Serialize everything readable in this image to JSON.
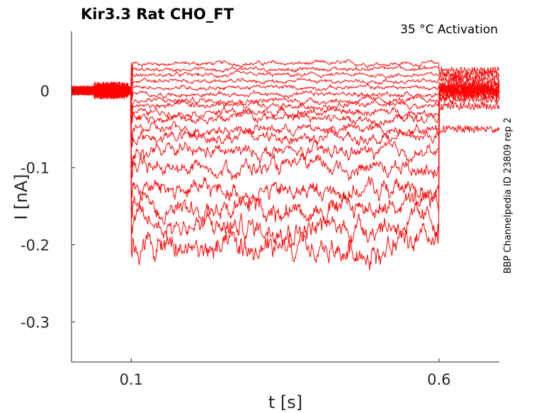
{
  "chart_data": {
    "type": "line",
    "title": "Kir3.3  Rat  CHO_FT",
    "subtitle": "35 °C  Activation",
    "side_label": "BBP Channelpedia ID 23809 rep 2",
    "xlabel": "t [s]",
    "ylabel": "I [nA]",
    "xlim": [
      0.003,
      0.698
    ],
    "ylim": [
      -0.352,
      0.077
    ],
    "xticks": [
      0.1,
      0.6
    ],
    "xtick_labels": [
      "0.1",
      "0.6"
    ],
    "yticks": [
      0,
      -0.1,
      -0.2,
      -0.3
    ],
    "ytick_labels": [
      "0",
      "-0.1",
      "-0.2",
      "-0.3"
    ],
    "step_on": 0.1,
    "step_off": 0.6,
    "line_color": "#ff0000",
    "series": [
      {
        "step_level": 0.035,
        "post_level": 0.026
      },
      {
        "step_level": 0.028,
        "post_level": 0.022
      },
      {
        "step_level": 0.02,
        "post_level": 0.017
      },
      {
        "step_level": 0.012,
        "post_level": 0.012
      },
      {
        "step_level": 0.004,
        "post_level": 0.008
      },
      {
        "step_level": -0.005,
        "post_level": 0.004
      },
      {
        "step_level": -0.013,
        "post_level": 0.0
      },
      {
        "step_level": -0.02,
        "post_level": -0.004
      },
      {
        "step_level": -0.028,
        "post_level": -0.008
      },
      {
        "step_level": -0.036,
        "post_level": -0.012
      },
      {
        "step_level": -0.05,
        "post_level": -0.02
      },
      {
        "step_level": -0.06,
        "post_level": -0.05
      },
      {
        "step_level": -0.08,
        "post_level": 0.005
      },
      {
        "step_level": -0.1,
        "post_level": 0.0
      },
      {
        "step_level": -0.125,
        "post_level": -0.005
      },
      {
        "step_level": -0.145,
        "post_level": 0.002
      },
      {
        "step_level": -0.17,
        "post_level": -0.003
      },
      {
        "step_level": -0.2,
        "post_level": 0.003
      }
    ]
  }
}
